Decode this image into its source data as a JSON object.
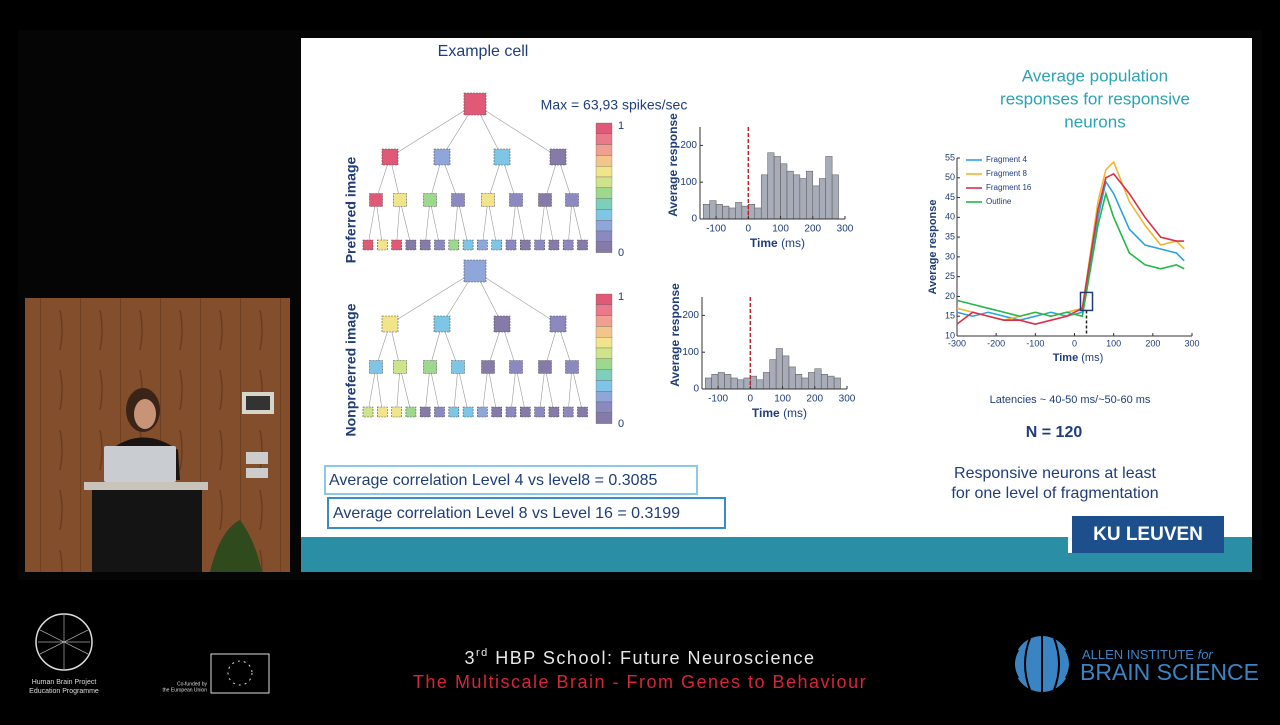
{
  "slide": {
    "title": "Example cell",
    "max_label": "Max = 63,93 spikes/sec",
    "tree_labels": [
      "Preferred image",
      "Nonpreferred image"
    ],
    "colorbar_ticks": [
      1,
      0
    ],
    "histograms": [
      {
        "type": "histogram",
        "ylabel": "Average response",
        "xlabel": "Time",
        "xunit": "(ms)",
        "bins": [
          -140,
          -120,
          -100,
          -80,
          -60,
          -40,
          -20,
          0,
          20,
          40,
          60,
          80,
          100,
          120,
          140,
          160,
          180,
          200,
          220,
          240,
          260,
          280
        ],
        "counts": [
          40,
          50,
          40,
          35,
          30,
          45,
          35,
          40,
          30,
          120,
          180,
          170,
          150,
          130,
          120,
          110,
          130,
          90,
          110,
          170,
          120
        ],
        "xlim": [
          -150,
          300
        ],
        "ylim": [
          0,
          250
        ],
        "xticks": [
          -100,
          0,
          100,
          200,
          300
        ],
        "yticks": [
          0,
          100,
          200
        ]
      },
      {
        "type": "histogram",
        "ylabel": "Average response",
        "xlabel": "Time",
        "xunit": "(ms)",
        "bins": [
          -140,
          -120,
          -100,
          -80,
          -60,
          -40,
          -20,
          0,
          20,
          40,
          60,
          80,
          100,
          120,
          140,
          160,
          180,
          200,
          220,
          240,
          260,
          280
        ],
        "counts": [
          30,
          40,
          45,
          40,
          30,
          25,
          30,
          35,
          25,
          45,
          80,
          110,
          90,
          60,
          40,
          30,
          45,
          55,
          40,
          35,
          30
        ],
        "xlim": [
          -150,
          300
        ],
        "ylim": [
          0,
          250
        ],
        "xticks": [
          -100,
          0,
          100,
          200,
          300
        ],
        "yticks": [
          0,
          100,
          200
        ]
      }
    ],
    "correlations": [
      "Average correlation Level 4 vs level8 = 0.3085",
      "Average correlation Level 8 vs Level 16 = 0.3199"
    ],
    "population": {
      "title_lines": [
        "Average population",
        "responses for responsive",
        "neurons"
      ],
      "chart": {
        "type": "line",
        "ylabel": "Average response",
        "xlabel": "Time",
        "xunit": "(ms)",
        "x": [
          -300,
          -260,
          -220,
          -180,
          -140,
          -100,
          -60,
          -20,
          20,
          60,
          80,
          100,
          140,
          180,
          220,
          260,
          280
        ],
        "series": [
          {
            "name": "Fragment 4",
            "color": "#29a3e0",
            "values": [
              16,
              15,
              16,
              15,
              14,
              15,
              16,
              15,
              16,
              40,
              49,
              46,
              37,
              33,
              32,
              31,
              29
            ]
          },
          {
            "name": "Fragment 8",
            "color": "#f2b630",
            "values": [
              17,
              16,
              15,
              14,
              15,
              16,
              15,
              16,
              17,
              44,
              52,
              54,
              44,
              38,
              33,
              34,
              32
            ]
          },
          {
            "name": "Fragment 16",
            "color": "#d9304a",
            "values": [
              13,
              16,
              15,
              14,
              14,
              13,
              14,
              15,
              17,
              42,
              50,
              51,
              46,
              40,
              35,
              34,
              34
            ]
          },
          {
            "name": "Outline",
            "color": "#22b84a",
            "values": [
              19,
              18,
              17,
              16,
              15,
              16,
              15,
              16,
              15,
              38,
              46,
              40,
              31,
              28,
              27,
              28,
              27
            ]
          }
        ],
        "xlim": [
          -300,
          300
        ],
        "ylim": [
          10,
          55
        ],
        "xticks": [
          -300,
          -200,
          -100,
          0,
          100,
          200,
          300
        ],
        "yticks": [
          10,
          15,
          20,
          25,
          30,
          35,
          40,
          45,
          50,
          55
        ]
      }
    },
    "latencies": "Latencies ~ 40-50 ms/~50-60 ms",
    "n": "N = 120",
    "responsive_lines": [
      "Responsive neurons at least",
      "for one level of fragmentation"
    ],
    "logo": "KU LEUVEN"
  },
  "footer": {
    "school": [
      "3",
      "rd",
      " HBP School: Future Neuroscience"
    ],
    "subtitle": "The Multiscale Brain - From Genes to Behaviour",
    "hbp": [
      "Human Brain Project",
      "Education Programme"
    ],
    "eu": [
      "Co-funded by",
      "the European Union"
    ],
    "allen": [
      "ALLEN INSTITUTE",
      "for",
      "BRAIN SCIENCE"
    ]
  }
}
